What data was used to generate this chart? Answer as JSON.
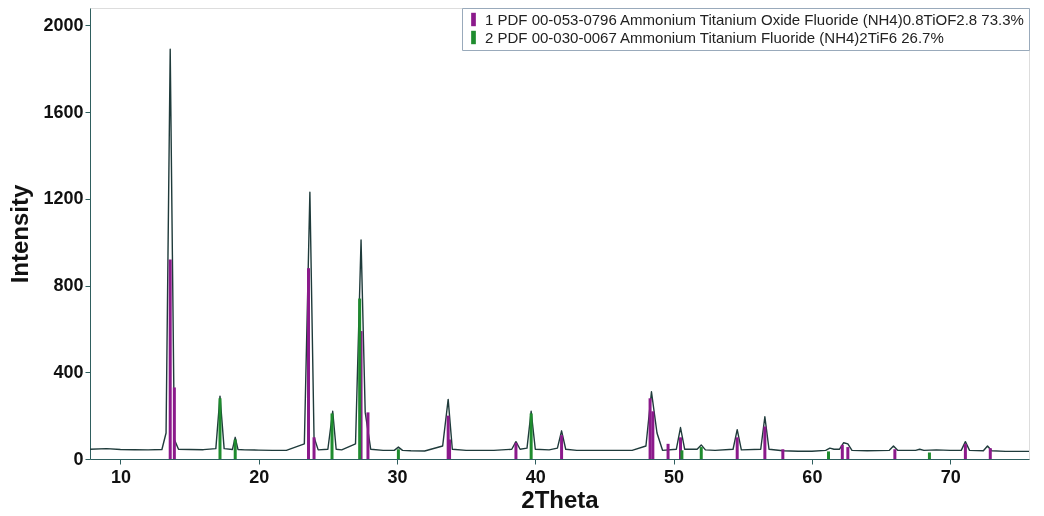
{
  "chart_data": {
    "type": "line",
    "xlabel": "2Theta",
    "ylabel": "Intensity",
    "xlim": [
      7.8,
      75.7
    ],
    "ylim": [
      0,
      2080
    ],
    "xticks": [
      10,
      20,
      30,
      40,
      50,
      60,
      70
    ],
    "yticks": [
      0,
      400,
      800,
      1200,
      1600,
      2000
    ],
    "grid": false,
    "legend": "top right",
    "marker": "none",
    "line_style": "solid",
    "series": [
      {
        "color": "#1f3b3b",
        "x": [
          7.8,
          9,
          10,
          11,
          12,
          13,
          13.3,
          13.6,
          13.9,
          14.2,
          15,
          16,
          16.9,
          17.2,
          17.5,
          18.1,
          18.3,
          18.5,
          19,
          20,
          21,
          22,
          23.3,
          23.7,
          24.0,
          24.3,
          25.0,
          25.35,
          25.6,
          26,
          27.0,
          27.4,
          27.7,
          28.1,
          29,
          29.8,
          30.1,
          30.4,
          31,
          32,
          33.3,
          33.7,
          34.0,
          35,
          36,
          37,
          38.3,
          38.6,
          38.9,
          39.4,
          39.7,
          40.0,
          41,
          41.6,
          41.9,
          42.2,
          43,
          44,
          45,
          46,
          47,
          48.0,
          48.4,
          48.8,
          49.2,
          50.2,
          50.5,
          50.8,
          51.7,
          52.0,
          52.3,
          53,
          54.3,
          54.6,
          54.9,
          56.3,
          56.6,
          56.9,
          57.9,
          59,
          60,
          61.0,
          61.3,
          61.6,
          62.0,
          62.3,
          62.6,
          62.9,
          64,
          65.6,
          65.9,
          66.2,
          67.5,
          67.8,
          68.1,
          69,
          70,
          70.8,
          71.1,
          71.4,
          72.4,
          72.7,
          73.0,
          74,
          75.7
        ],
        "values": [
          45,
          48,
          44,
          43,
          42,
          44,
          120,
          1890,
          90,
          45,
          44,
          43,
          48,
          290,
          48,
          44,
          100,
          44,
          42,
          41,
          40,
          40,
          70,
          1230,
          100,
          42,
          45,
          220,
          45,
          42,
          70,
          1010,
          215,
          45,
          40,
          40,
          55,
          40,
          38,
          37,
          60,
          275,
          45,
          40,
          40,
          40,
          45,
          80,
          45,
          50,
          220,
          45,
          42,
          50,
          130,
          45,
          40,
          40,
          40,
          40,
          40,
          60,
          310,
          120,
          40,
          45,
          145,
          45,
          45,
          65,
          42,
          40,
          45,
          135,
          42,
          45,
          195,
          45,
          38,
          36,
          36,
          40,
          50,
          45,
          45,
          75,
          70,
          40,
          38,
          40,
          60,
          40,
          40,
          45,
          40,
          42,
          40,
          40,
          80,
          40,
          38,
          60,
          38,
          35,
          35
        ]
      },
      {
        "type": "bar",
        "name": "1 PDF 00-053-0796 Ammonium Titanium Oxide Fluoride (NH4)0.8TiOF2.8 73.3%",
        "color": "#8b1a8b",
        "x": [
          13.6,
          13.9,
          23.6,
          24.0,
          27.4,
          27.9,
          33.7,
          33.8,
          38.6,
          41.9,
          48.3,
          48.5,
          49.6,
          50.5,
          54.6,
          56.6,
          57.9,
          62.2,
          62.6,
          66.0,
          71.1,
          72.9
        ],
        "values": [
          920,
          330,
          880,
          100,
          590,
          215,
          200,
          90,
          75,
          110,
          280,
          220,
          70,
          100,
          100,
          150,
          45,
          65,
          55,
          45,
          70,
          50
        ]
      },
      {
        "type": "bar",
        "name": "2 PDF 00-030-0067 Ammonium Titanium Fluoride (NH4)2TiF6 26.7%",
        "color": "#1e8c2e",
        "x": [
          17.2,
          18.3,
          25.3,
          27.3,
          30.1,
          39.7,
          50.6,
          52.0,
          61.2,
          68.5
        ],
        "values": [
          280,
          90,
          210,
          740,
          45,
          210,
          40,
          55,
          35,
          30
        ]
      }
    ]
  }
}
